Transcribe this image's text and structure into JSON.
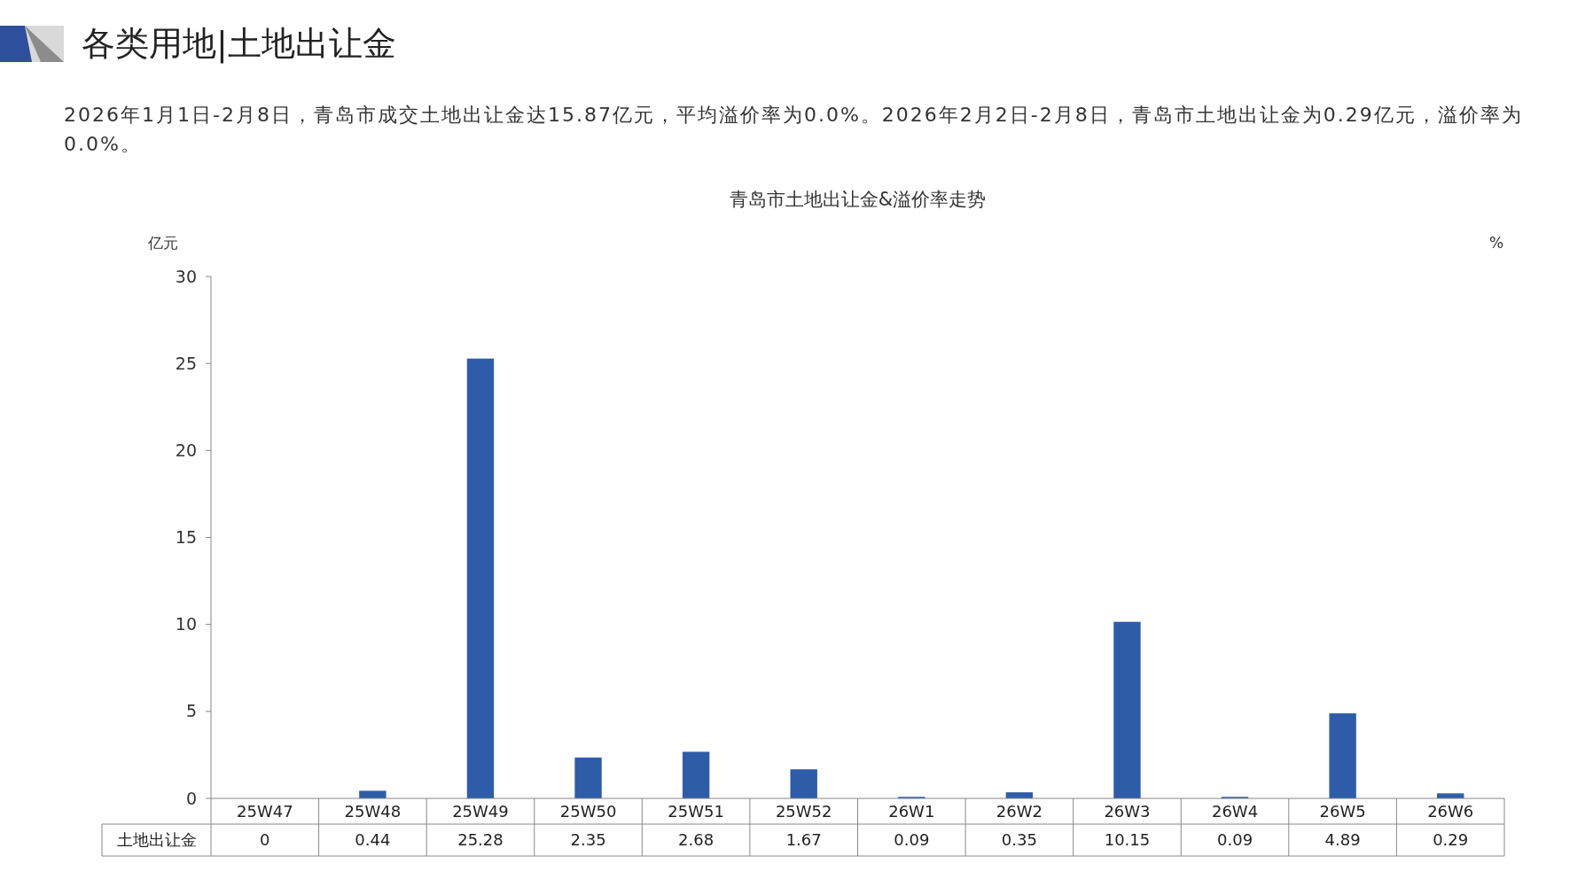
{
  "chart_data": {
    "type": "bar",
    "title": "青岛市土地出让金&溢价率走势",
    "ylabel": "亿元",
    "y2label": "%",
    "annotations": [
      "各类用地|土地出让金",
      "2026年1月1日-2月8日，青岛市成交土地出让金达15.87亿元，平均溢价率为0.0%。2026年2月2日-2月8日，青岛市土地出让金为0.29亿元，溢价率为0.0%。"
    ],
    "categories": [
      "25W47",
      "25W48",
      "25W49",
      "25W50",
      "25W51",
      "25W52",
      "26W1",
      "26W2",
      "26W3",
      "26W4",
      "26W5",
      "26W6"
    ],
    "series": [
      {
        "name": "土地出让金",
        "color": "#2e5ca8",
        "values": [
          0,
          0.44,
          25.28,
          2.35,
          2.68,
          1.67,
          0.09,
          0.35,
          10.15,
          0.09,
          4.89,
          0.29
        ]
      }
    ],
    "ylim": [
      0,
      30
    ],
    "yticks": [
      0,
      5,
      10,
      15,
      20,
      25,
      30
    ],
    "data_labels": true,
    "grid": false
  }
}
